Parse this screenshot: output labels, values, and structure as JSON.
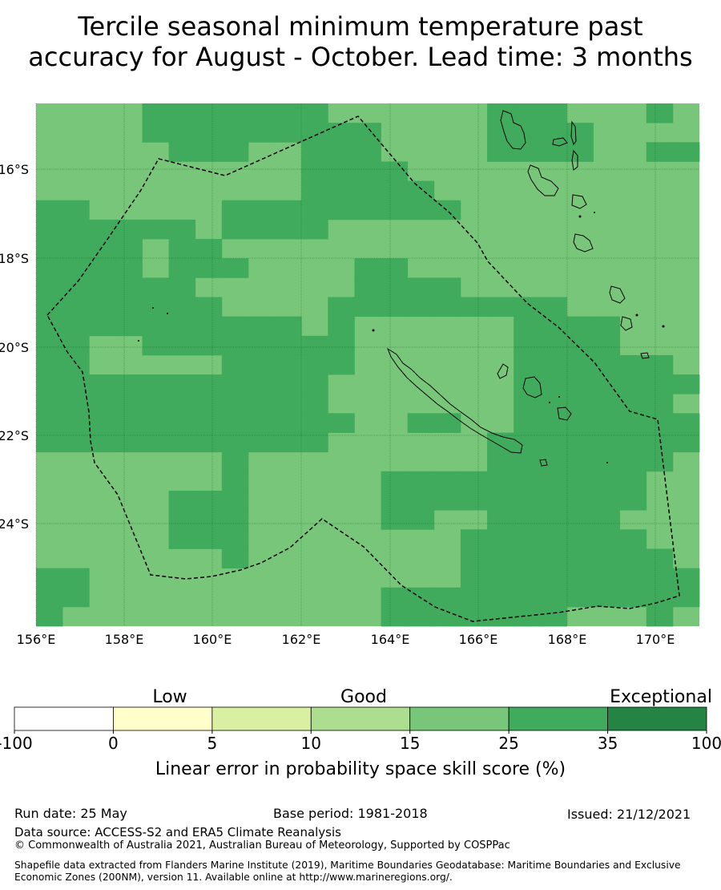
{
  "title_line1": "Tercile seasonal minimum temperature past",
  "title_line2": "accuracy for August - October. Lead time: 3 months",
  "map": {
    "lon_ticks": [
      "156°E",
      "158°E",
      "160°E",
      "162°E",
      "164°E",
      "166°E",
      "168°E",
      "170°E"
    ],
    "lat_ticks": [
      "16°S",
      "18°S",
      "20°S",
      "22°S",
      "24°S"
    ],
    "grid": [
      "2222333333322222233322232",
      "2222333333333222233332222",
      "2222233322333222233332233",
      "2222222222333322222222222",
      "2222222222333332222222222",
      "3322222333333333222222222",
      "3333332333322222222222222",
      "3333233222222222222222222",
      "3333233322223322222222222",
      "3333332222223333222222222",
      "3333333222233333333322222",
      "3333333333232222223333222",
      "3322333333332222223333222",
      "3322222333332222223333332",
      "3333333333322222223333333",
      "3333333333322222223333332",
      "3333333333332233223333333",
      "3333333333322222233333333",
      "2222222322222222233333332",
      "2222222322222333333333322",
      "2222233322222333333333322",
      "2222233322222332233333222",
      "2222233322222222333333322",
      "2222222322222222333333332",
      "3322222222222222333333333",
      "3322222222222333333333333",
      "3222222222222333333322232"
    ]
  },
  "colorbar": {
    "labels_top": [
      "Low",
      "Good",
      "Exceptional"
    ],
    "ticks": [
      "-100",
      "0",
      "5",
      "10",
      "15",
      "25",
      "35",
      "100"
    ],
    "colors": [
      "#ffffff",
      "#ffffcc",
      "#d9f0a3",
      "#addd8e",
      "#78c679",
      "#41ab5d",
      "#238443"
    ],
    "xlabel": "Linear error in probability space skill score (%)"
  },
  "footer": {
    "run_date": "Run date: 25 May",
    "base_period": "Base period: 1981-2018",
    "issued": "Issued: 21/12/2021",
    "data_source": "Data source: ACCESS-S2 and ERA5 Climate Reanalysis",
    "copyright": "© Commonwealth of Australia 2021, Australian Bureau of Meteorology, Supported by COSPPac",
    "shapefile": "Shapefile data extracted from Flanders Marine Institute (2019), Maritime Boundaries Geodatabase: Maritime Boundaries and Exclusive Economic Zones (200NM), version 11. Available online at http://www.marineregions.org/."
  }
}
